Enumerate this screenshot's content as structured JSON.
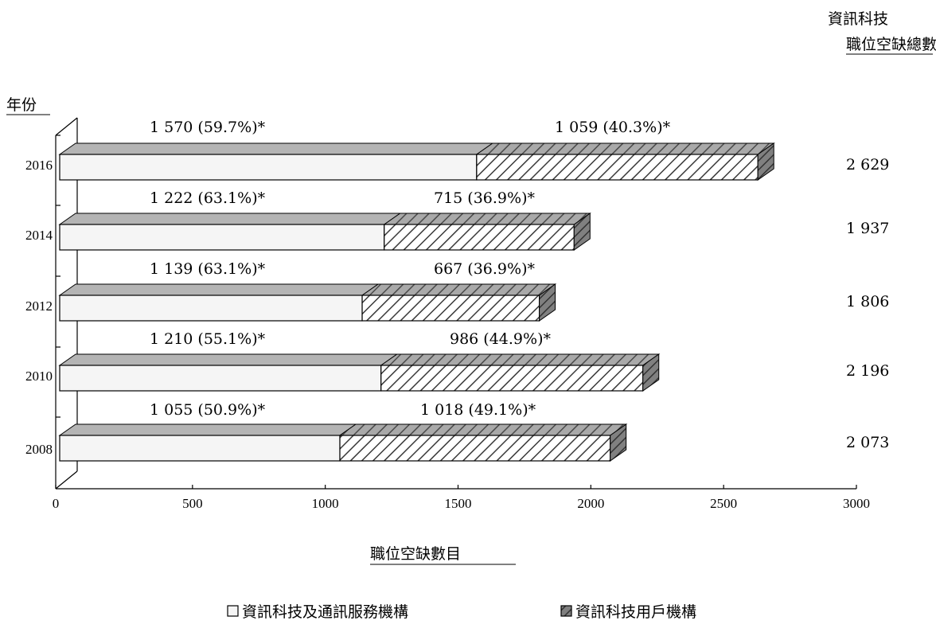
{
  "chart_data": {
    "type": "bar",
    "stacked": true,
    "orientation": "horizontal",
    "style": "3d",
    "categories": [
      "2016",
      "2014",
      "2012",
      "2010",
      "2008"
    ],
    "series": [
      {
        "name": "資訊科技及通訊服務機構",
        "values": [
          1570,
          1222,
          1139,
          1210,
          1055
        ],
        "labels": [
          "1 570 (59.7%)*",
          "1 222 (63.1%)*",
          "1 139 (63.1%)*",
          "1 210 (55.1%)*",
          "1 055 (50.9%)*"
        ],
        "color": "#f5f5f5"
      },
      {
        "name": "資訊科技用戶機構",
        "values": [
          1059,
          715,
          667,
          986,
          1018
        ],
        "labels": [
          "1 059 (40.3%)*",
          "715 (36.9%)*",
          "667 (36.9%)*",
          "986 (44.9%)*",
          "1 018 (49.1%)*"
        ],
        "color": "#b0b0b0"
      }
    ],
    "totals": [
      "2 629",
      "1 937",
      "1 806",
      "2 196",
      "2 073"
    ],
    "totals_header": [
      "資訊科技",
      "職位空缺總數"
    ],
    "xlabel": "職位空缺數目",
    "ylabel": "年份",
    "xlim": [
      0,
      3000
    ],
    "xticks": [
      "0",
      "500",
      "1000",
      "1500",
      "2000",
      "2500",
      "3000"
    ],
    "legend_position": "bottom",
    "grid": false
  }
}
